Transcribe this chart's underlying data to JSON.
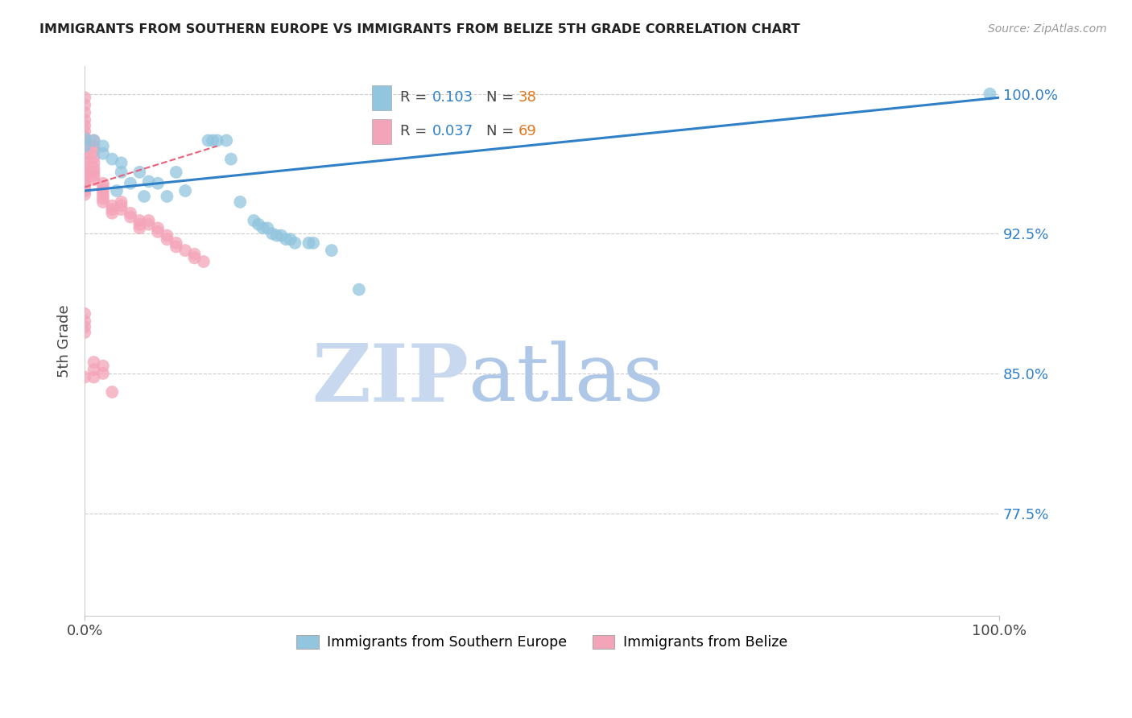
{
  "title": "IMMIGRANTS FROM SOUTHERN EUROPE VS IMMIGRANTS FROM BELIZE 5TH GRADE CORRELATION CHART",
  "source": "Source: ZipAtlas.com",
  "ylabel": "5th Grade",
  "xlim": [
    0.0,
    1.0
  ],
  "ylim": [
    0.72,
    1.015
  ],
  "ytick_values": [
    0.775,
    0.85,
    0.925,
    1.0
  ],
  "ytick_labels": [
    "77.5%",
    "85.0%",
    "92.5%",
    "100.0%"
  ],
  "xtick_values": [
    0.0,
    1.0
  ],
  "xtick_labels": [
    "0.0%",
    "100.0%"
  ],
  "blue_color": "#92c5de",
  "pink_color": "#f4a4b8",
  "blue_line_color": "#3080c8",
  "pink_line_color": "#e8607a",
  "right_axis_color": "#3080c8",
  "legend_r_blue_label": "R = ",
  "legend_r_blue_val": "0.103",
  "legend_n_blue_label": "N = ",
  "legend_n_blue_val": "38",
  "legend_r_pink_label": "R = ",
  "legend_r_pink_val": "0.037",
  "legend_n_pink_label": "N = ",
  "legend_n_pink_val": "69",
  "blue_val_color": "#3080c8",
  "orange_val_color": "#e07820",
  "watermark_zip_color": "#c8d8ee",
  "watermark_atlas_color": "#b0c8e8",
  "blue_scatter_x": [
    0.0,
    0.0,
    0.01,
    0.02,
    0.02,
    0.03,
    0.035,
    0.04,
    0.04,
    0.05,
    0.06,
    0.065,
    0.07,
    0.08,
    0.09,
    0.1,
    0.11,
    0.135,
    0.14,
    0.145,
    0.155,
    0.16,
    0.17,
    0.185,
    0.19,
    0.195,
    0.2,
    0.205,
    0.21,
    0.215,
    0.22,
    0.225,
    0.23,
    0.245,
    0.25,
    0.27,
    0.3,
    0.99
  ],
  "blue_scatter_y": [
    0.976,
    0.972,
    0.975,
    0.972,
    0.968,
    0.965,
    0.948,
    0.963,
    0.958,
    0.952,
    0.958,
    0.945,
    0.953,
    0.952,
    0.945,
    0.958,
    0.948,
    0.975,
    0.975,
    0.975,
    0.975,
    0.965,
    0.942,
    0.932,
    0.93,
    0.928,
    0.928,
    0.925,
    0.924,
    0.924,
    0.922,
    0.922,
    0.92,
    0.92,
    0.92,
    0.916,
    0.895,
    1.0
  ],
  "pink_scatter_x": [
    0.0,
    0.0,
    0.0,
    0.0,
    0.0,
    0.0,
    0.0,
    0.0,
    0.0,
    0.0,
    0.0,
    0.0,
    0.0,
    0.0,
    0.0,
    0.0,
    0.0,
    0.0,
    0.0,
    0.0,
    0.01,
    0.01,
    0.01,
    0.01,
    0.01,
    0.01,
    0.01,
    0.01,
    0.01,
    0.02,
    0.02,
    0.02,
    0.02,
    0.02,
    0.02,
    0.03,
    0.03,
    0.03,
    0.04,
    0.04,
    0.04,
    0.05,
    0.05,
    0.06,
    0.06,
    0.06,
    0.07,
    0.07,
    0.08,
    0.08,
    0.09,
    0.09,
    0.1,
    0.1,
    0.11,
    0.12,
    0.12,
    0.13,
    0.0,
    0.0,
    0.0,
    0.0,
    0.0,
    0.01,
    0.01,
    0.01,
    0.02,
    0.02,
    0.03
  ],
  "pink_scatter_y": [
    0.998,
    0.994,
    0.99,
    0.986,
    0.983,
    0.98,
    0.977,
    0.974,
    0.971,
    0.968,
    0.965,
    0.963,
    0.96,
    0.958,
    0.956,
    0.954,
    0.952,
    0.95,
    0.948,
    0.946,
    0.975,
    0.972,
    0.969,
    0.966,
    0.963,
    0.96,
    0.958,
    0.956,
    0.954,
    0.952,
    0.95,
    0.948,
    0.946,
    0.944,
    0.942,
    0.94,
    0.938,
    0.936,
    0.942,
    0.94,
    0.938,
    0.936,
    0.934,
    0.932,
    0.93,
    0.928,
    0.932,
    0.93,
    0.928,
    0.926,
    0.924,
    0.922,
    0.92,
    0.918,
    0.916,
    0.914,
    0.912,
    0.91,
    0.882,
    0.878,
    0.875,
    0.872,
    0.848,
    0.856,
    0.852,
    0.848,
    0.854,
    0.85,
    0.84
  ],
  "blue_trend_x0": 0.0,
  "blue_trend_x1": 1.0,
  "blue_trend_y0": 0.948,
  "blue_trend_y1": 0.998,
  "pink_trend_x0": 0.0,
  "pink_trend_x1": 0.145,
  "pink_trend_y0": 0.95,
  "pink_trend_y1": 0.972
}
